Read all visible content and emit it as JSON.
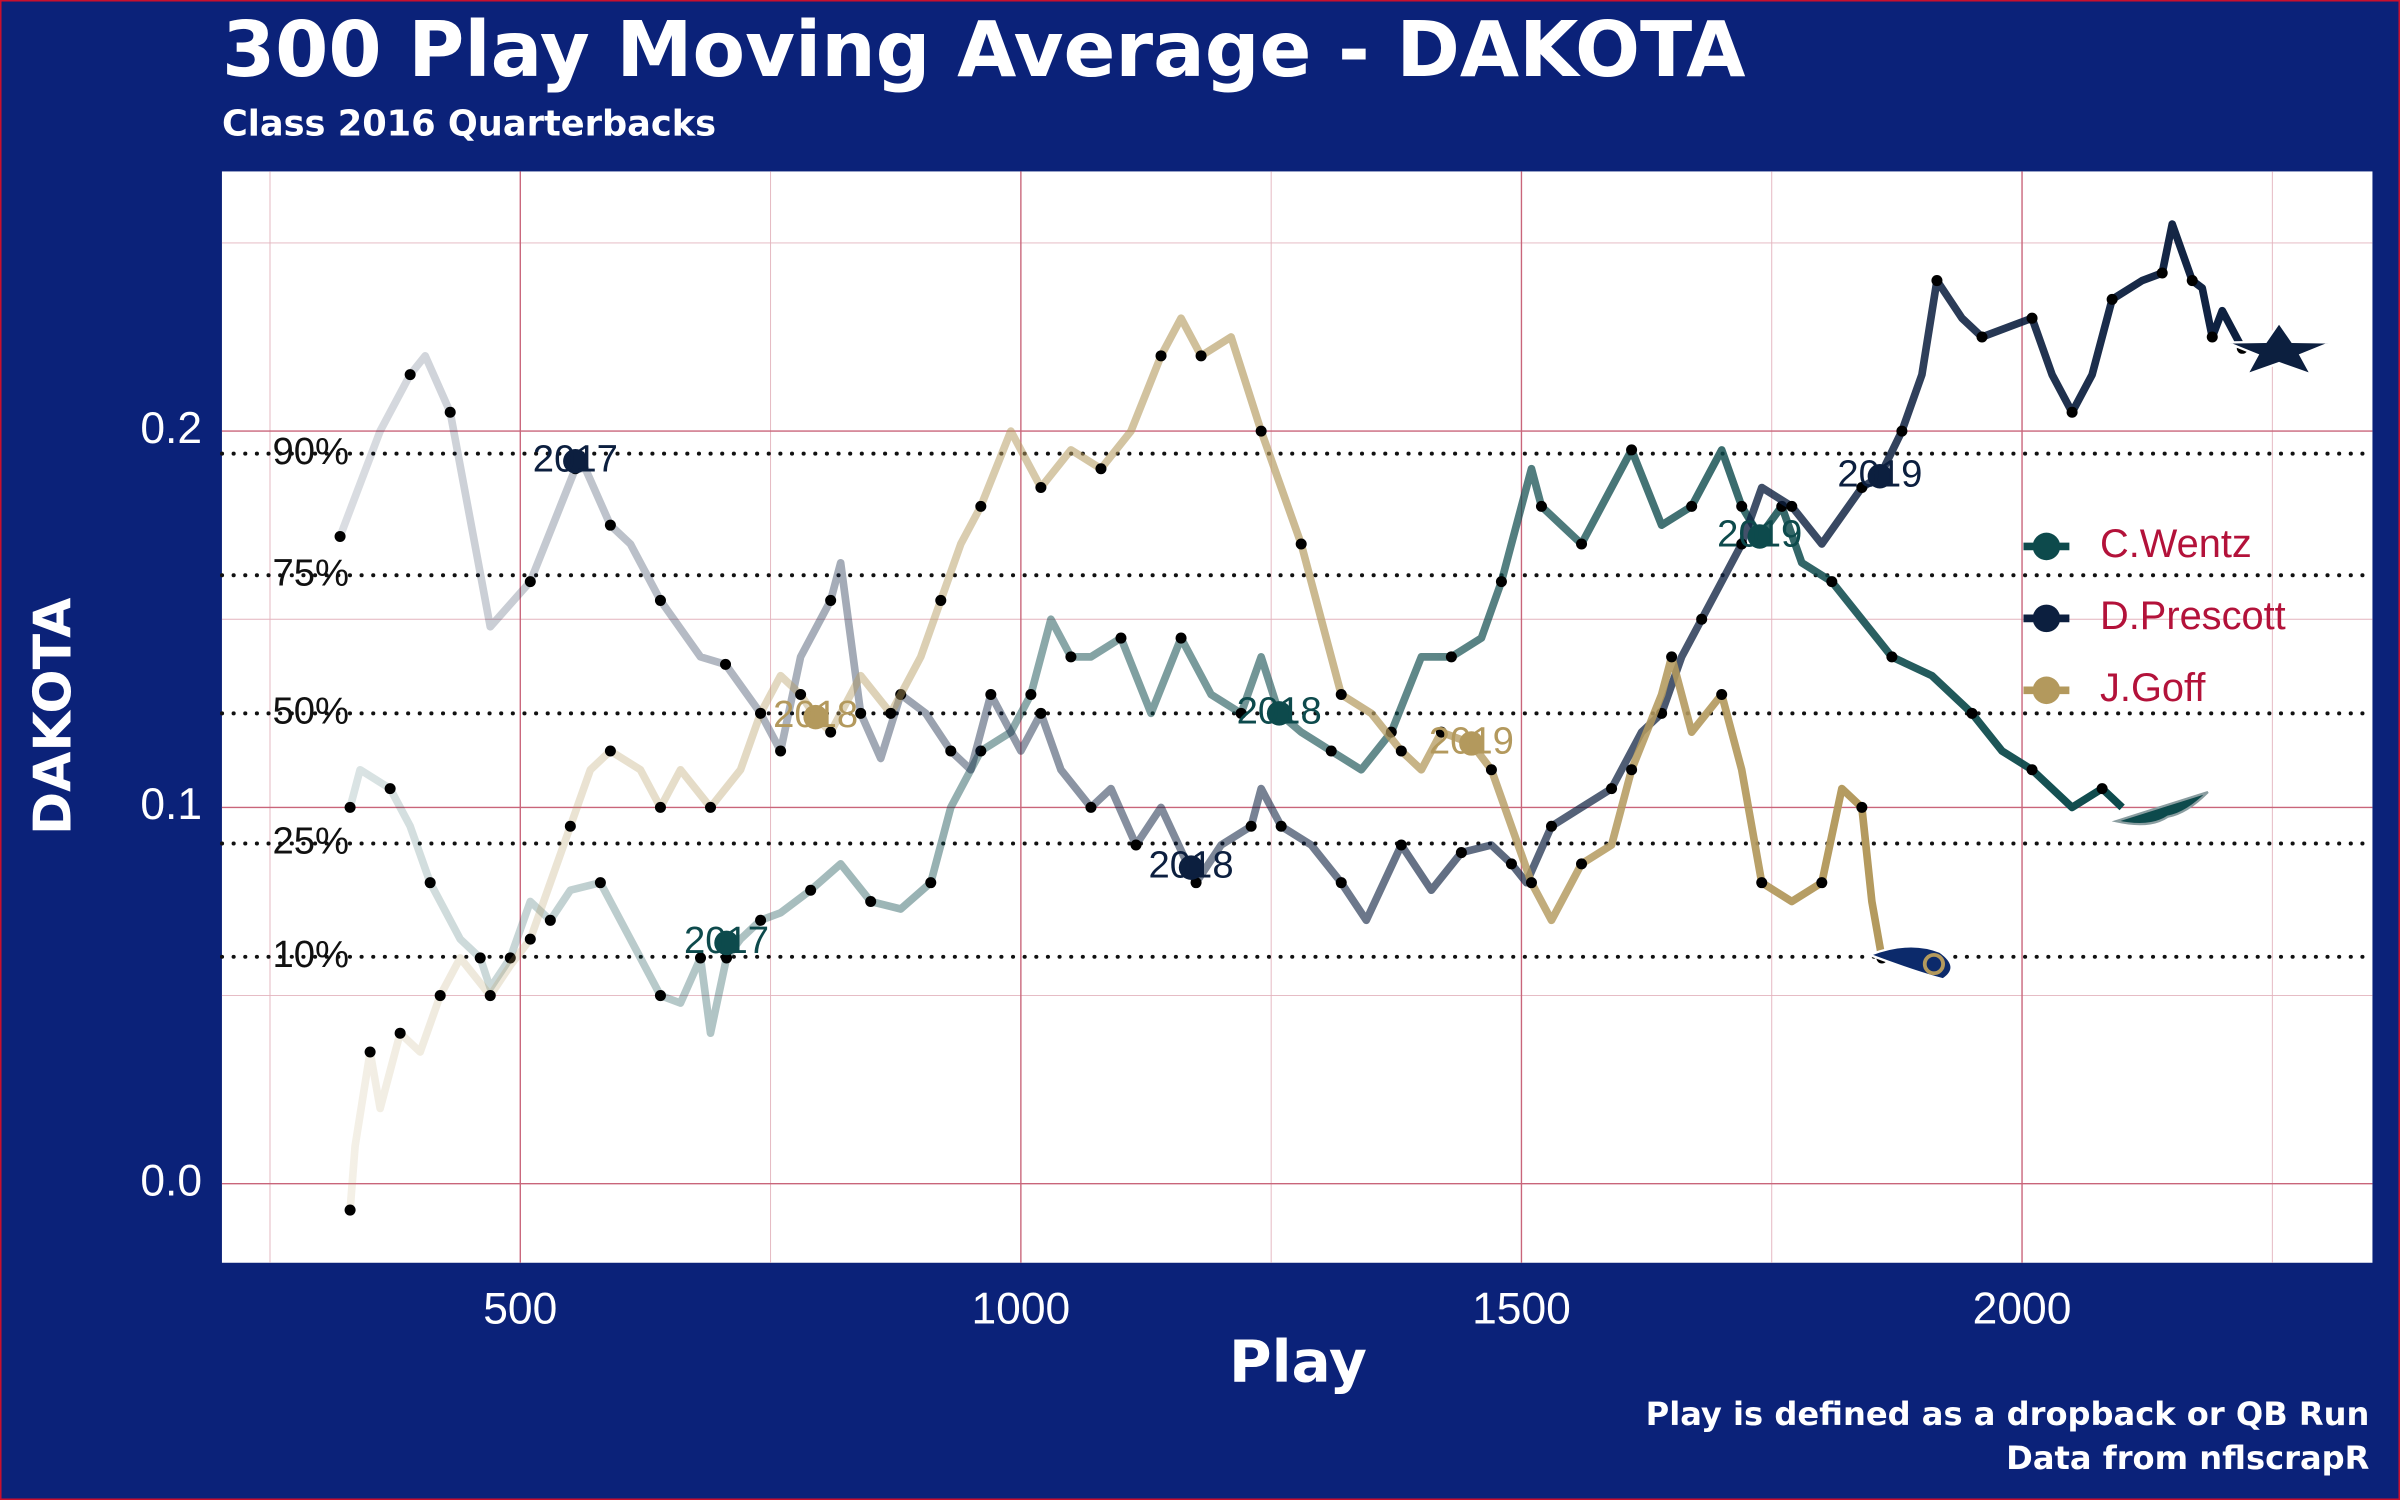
{
  "chart_data": {
    "type": "line",
    "title": "300 Play Moving Average - DAKOTA",
    "subtitle": "Class 2016 Quarterbacks",
    "x_label": "Play",
    "y_label": "DAKOTA",
    "caption": [
      "Play is defined as a dropback or QB Run",
      "Data from nflscrapR"
    ],
    "xlim": [
      202,
      2350
    ],
    "ylim": [
      -0.021,
      0.269
    ],
    "xticks": [
      500,
      1000,
      1500,
      2000
    ],
    "yticks": [
      {
        "value": 0,
        "label": "0.0"
      },
      0.1,
      0.2
    ],
    "x_minor_ticks": [
      250,
      750,
      1250,
      1750,
      2250
    ],
    "y_minor_ticks": [
      0.05,
      0.15,
      0.25
    ],
    "grid": true,
    "legend_position": "right",
    "reference_lines": [
      {
        "label": "90%",
        "value": 0.194
      },
      {
        "label": "75%",
        "value": 0.1617
      },
      {
        "label": "50%",
        "value": 0.125
      },
      {
        "label": "25%",
        "value": 0.0904
      },
      {
        "label": "10%",
        "value": 0.0603
      }
    ],
    "series": [
      {
        "name": "C.Wentz",
        "color": "#0d4a4c",
        "logo": "eagle",
        "x": [
          330,
          340,
          370,
          390,
          410,
          440,
          460,
          470,
          490,
          510,
          530,
          550,
          580,
          610,
          640,
          660,
          680,
          690,
          706,
          720,
          740,
          760,
          790,
          820,
          850,
          880,
          910,
          930,
          960,
          990,
          1010,
          1030,
          1050,
          1070,
          1100,
          1130,
          1160,
          1190,
          1220,
          1240,
          1258,
          1280,
          1310,
          1340,
          1370,
          1400,
          1430,
          1460,
          1480,
          1510,
          1520,
          1540,
          1560,
          1590,
          1610,
          1640,
          1670,
          1700,
          1720,
          1738,
          1760,
          1780,
          1810,
          1840,
          1870,
          1910,
          1950,
          1980,
          2010,
          2050,
          2080,
          2100
        ],
        "values": [
          0.1,
          0.11,
          0.105,
          0.095,
          0.08,
          0.065,
          0.06,
          0.052,
          0.06,
          0.075,
          0.07,
          0.078,
          0.08,
          0.065,
          0.05,
          0.048,
          0.06,
          0.04,
          0.06,
          0.065,
          0.07,
          0.072,
          0.078,
          0.085,
          0.075,
          0.073,
          0.08,
          0.1,
          0.115,
          0.12,
          0.13,
          0.15,
          0.14,
          0.14,
          0.145,
          0.125,
          0.145,
          0.13,
          0.125,
          0.14,
          0.125,
          0.12,
          0.115,
          0.11,
          0.12,
          0.14,
          0.14,
          0.145,
          0.16,
          0.19,
          0.18,
          0.175,
          0.17,
          0.185,
          0.195,
          0.175,
          0.18,
          0.195,
          0.18,
          0.172,
          0.18,
          0.165,
          0.16,
          0.15,
          0.14,
          0.135,
          0.125,
          0.115,
          0.11,
          0.1,
          0.105,
          0.1
        ],
        "season_labels": [
          {
            "label": "2017",
            "x": 706,
            "y": 0.064
          },
          {
            "label": "2018",
            "x": 1258,
            "y": 0.125
          },
          {
            "label": "2019",
            "x": 1738,
            "y": 0.172
          }
        ]
      },
      {
        "name": "D.Prescott",
        "color": "#0c1f3f",
        "logo": "star",
        "x": [
          320,
          360,
          390,
          405,
          430,
          470,
          510,
          540,
          555,
          565,
          590,
          610,
          640,
          680,
          705,
          740,
          760,
          780,
          810,
          820,
          840,
          860,
          880,
          905,
          930,
          950,
          970,
          1000,
          1020,
          1040,
          1070,
          1090,
          1115,
          1140,
          1175,
          1200,
          1230,
          1240,
          1260,
          1290,
          1320,
          1345,
          1380,
          1410,
          1440,
          1470,
          1490,
          1505,
          1530,
          1560,
          1590,
          1620,
          1640,
          1660,
          1680,
          1700,
          1720,
          1740,
          1770,
          1800,
          1840,
          1858,
          1880,
          1900,
          1915,
          1940,
          1960,
          1990,
          2010,
          2030,
          2050,
          2070,
          2090,
          2120,
          2140,
          2150,
          2170,
          2180,
          2190,
          2200,
          2220
        ],
        "values": [
          0.172,
          0.2,
          0.215,
          0.22,
          0.205,
          0.148,
          0.16,
          0.18,
          0.19,
          0.19,
          0.175,
          0.17,
          0.155,
          0.14,
          0.138,
          0.125,
          0.115,
          0.14,
          0.155,
          0.165,
          0.125,
          0.113,
          0.13,
          0.125,
          0.115,
          0.11,
          0.13,
          0.115,
          0.125,
          0.11,
          0.1,
          0.105,
          0.09,
          0.1,
          0.08,
          0.09,
          0.095,
          0.105,
          0.095,
          0.09,
          0.08,
          0.07,
          0.09,
          0.078,
          0.088,
          0.09,
          0.085,
          0.08,
          0.095,
          0.1,
          0.105,
          0.12,
          0.125,
          0.14,
          0.15,
          0.16,
          0.17,
          0.185,
          0.18,
          0.17,
          0.185,
          0.188,
          0.2,
          0.215,
          0.24,
          0.23,
          0.225,
          0.228,
          0.23,
          0.215,
          0.205,
          0.215,
          0.235,
          0.24,
          0.242,
          0.255,
          0.24,
          0.238,
          0.225,
          0.232,
          0.222
        ],
        "season_labels": [
          {
            "label": "2017",
            "x": 555,
            "y": 0.192
          },
          {
            "label": "2018",
            "x": 1170,
            "y": 0.084
          },
          {
            "label": "2019",
            "x": 1858,
            "y": 0.188
          }
        ]
      },
      {
        "name": "J.Goff",
        "color": "#b3995d",
        "logo": "ram",
        "x": [
          330,
          335,
          350,
          360,
          380,
          400,
          420,
          440,
          470,
          490,
          510,
          530,
          550,
          570,
          590,
          620,
          640,
          660,
          690,
          720,
          740,
          760,
          780,
          795,
          810,
          840,
          870,
          900,
          920,
          940,
          960,
          990,
          1020,
          1050,
          1080,
          1110,
          1140,
          1160,
          1180,
          1210,
          1240,
          1260,
          1280,
          1300,
          1320,
          1350,
          1380,
          1400,
          1420,
          1450,
          1470,
          1490,
          1510,
          1530,
          1560,
          1590,
          1610,
          1640,
          1650,
          1670,
          1700,
          1720,
          1740,
          1770,
          1800,
          1820,
          1840,
          1850,
          1860
        ],
        "values": [
          -0.007,
          0.01,
          0.035,
          0.02,
          0.04,
          0.035,
          0.05,
          0.06,
          0.05,
          0.058,
          0.065,
          0.08,
          0.095,
          0.11,
          0.115,
          0.11,
          0.1,
          0.11,
          0.1,
          0.11,
          0.125,
          0.135,
          0.13,
          0.124,
          0.12,
          0.135,
          0.125,
          0.14,
          0.155,
          0.17,
          0.18,
          0.2,
          0.185,
          0.195,
          0.19,
          0.2,
          0.22,
          0.23,
          0.22,
          0.225,
          0.2,
          0.185,
          0.17,
          0.15,
          0.13,
          0.125,
          0.115,
          0.11,
          0.12,
          0.117,
          0.11,
          0.095,
          0.08,
          0.07,
          0.085,
          0.09,
          0.11,
          0.13,
          0.14,
          0.12,
          0.13,
          0.11,
          0.08,
          0.075,
          0.08,
          0.105,
          0.1,
          0.075,
          0.06
        ],
        "season_labels": [
          {
            "label": "2018",
            "x": 795,
            "y": 0.124
          },
          {
            "label": "2019",
            "x": 1450,
            "y": 0.117
          }
        ]
      }
    ]
  }
}
